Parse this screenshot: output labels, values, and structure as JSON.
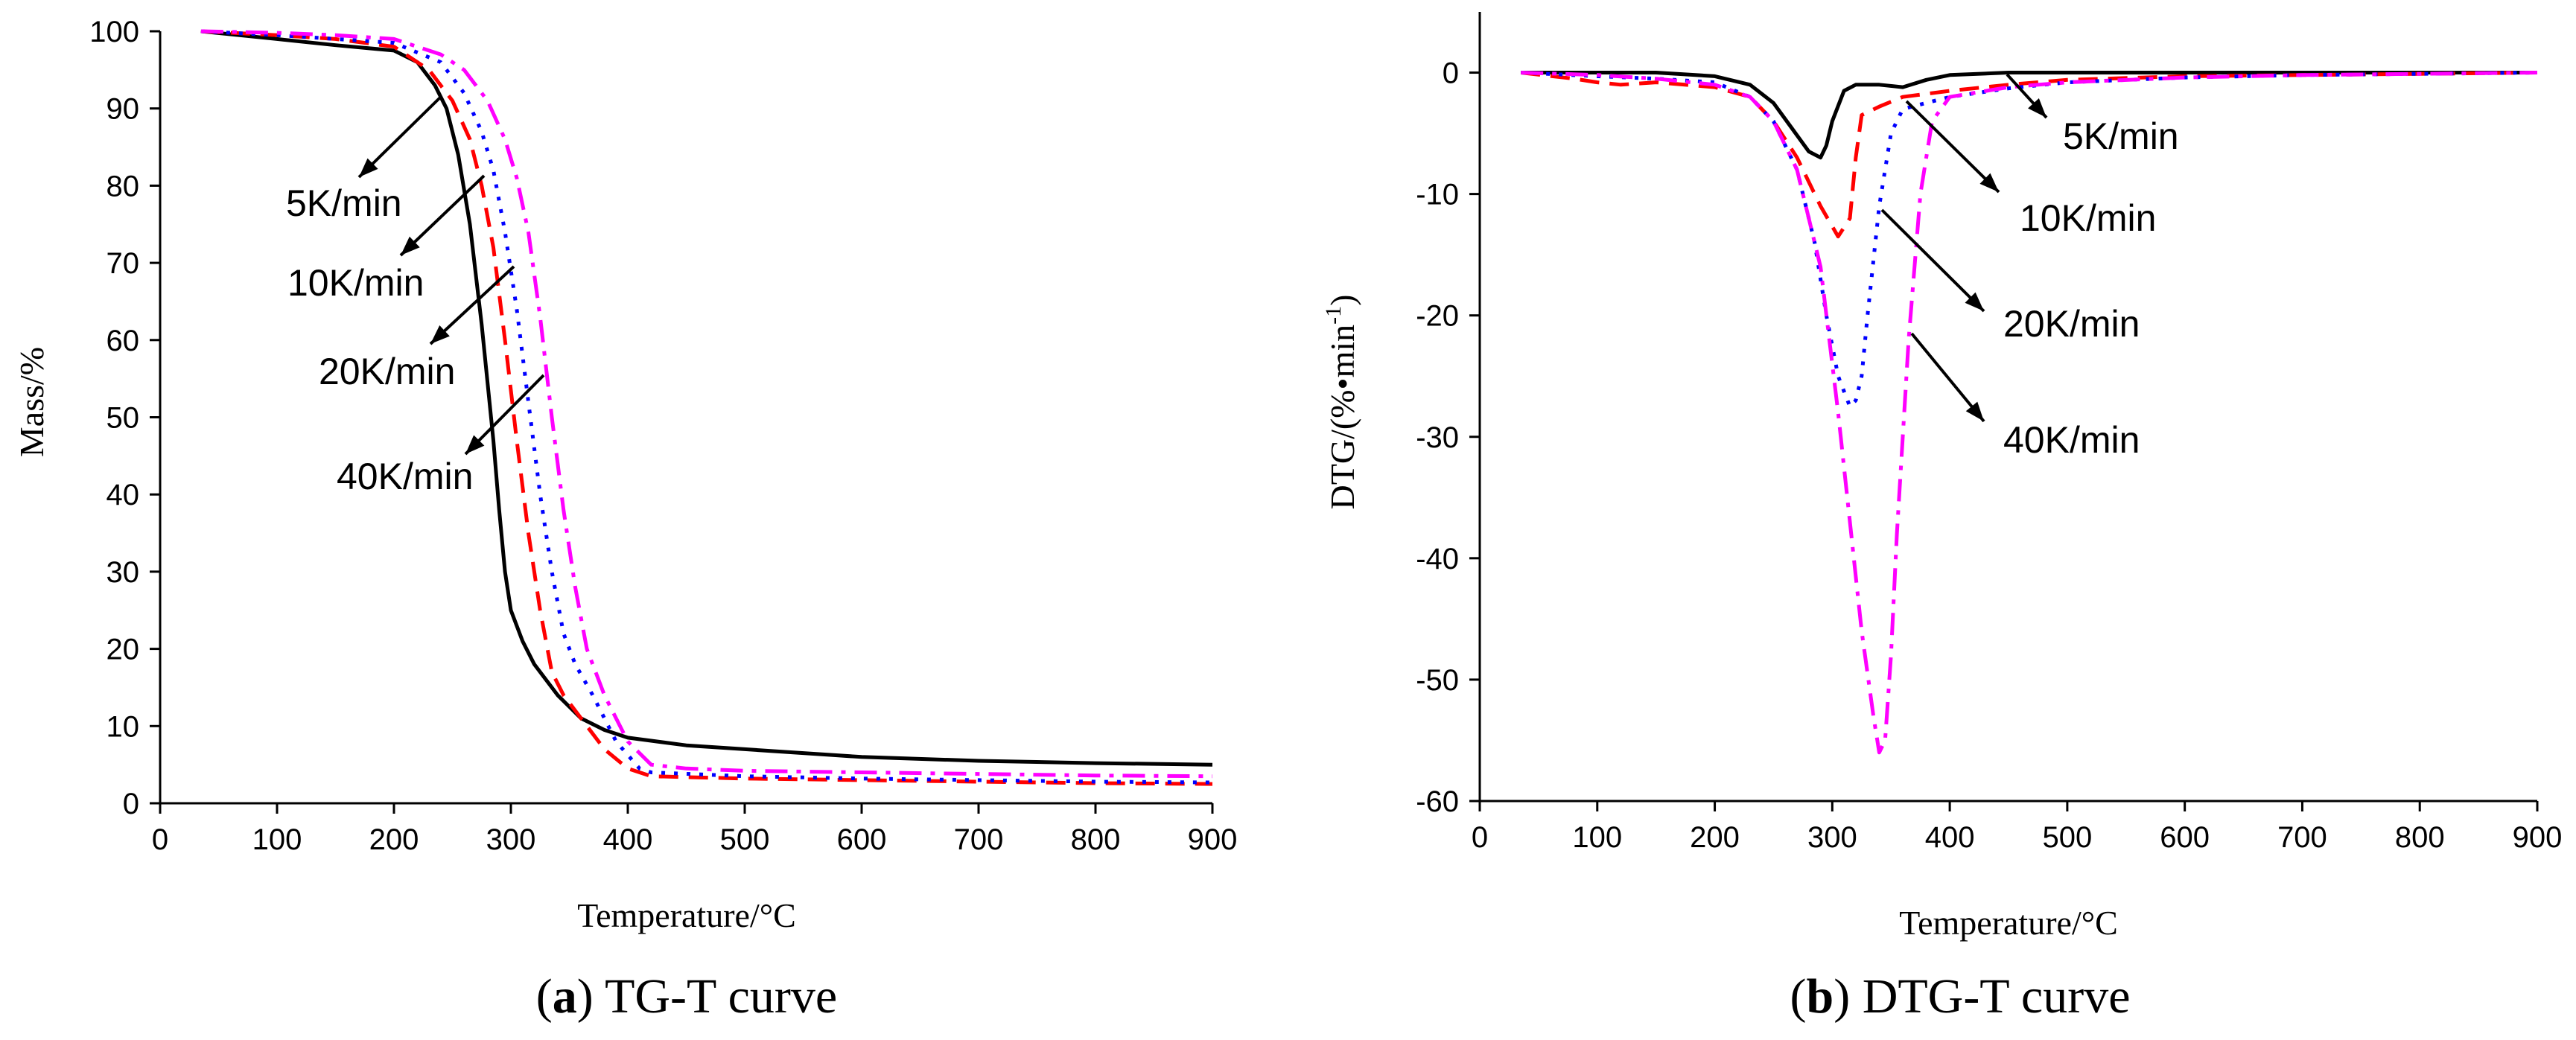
{
  "colors": {
    "5K/min": "#000000",
    "10K/min": "#ff0000",
    "20K/min": "#0000ff",
    "40K/min": "#ff00ff"
  },
  "chart_data": [
    {
      "type": "line",
      "caption_letter": "a",
      "caption_text": "TG-T curve",
      "xlabel": "Temperature/°C",
      "ylabel": "Mass/%",
      "xlim": [
        0,
        900
      ],
      "ylim": [
        0,
        100
      ],
      "xticks": [
        0,
        100,
        200,
        300,
        400,
        500,
        600,
        700,
        800,
        900
      ],
      "yticks": [
        0,
        10,
        20,
        30,
        40,
        50,
        60,
        70,
        80,
        90,
        100
      ],
      "grid": false,
      "series": [
        {
          "name": "5K/min",
          "style": "solid",
          "x": [
            35,
            100,
            150,
            200,
            220,
            235,
            245,
            255,
            265,
            275,
            285,
            290,
            295,
            300,
            310,
            320,
            340,
            360,
            380,
            400,
            450,
            500,
            600,
            700,
            800,
            900
          ],
          "y": [
            100,
            99,
            98.2,
            97.5,
            96,
            93,
            90,
            84,
            75,
            62,
            47,
            38,
            30,
            25,
            21,
            18,
            14,
            11,
            9.5,
            8.5,
            7.5,
            7,
            6,
            5.5,
            5.2,
            5
          ]
        },
        {
          "name": "10K/min",
          "style": "dashed",
          "x": [
            35,
            100,
            150,
            200,
            230,
            250,
            265,
            275,
            285,
            295,
            305,
            315,
            325,
            335,
            345,
            360,
            380,
            400,
            420,
            500,
            600,
            700,
            800,
            900
          ],
          "y": [
            100,
            99.5,
            99,
            98,
            95,
            91,
            86,
            80,
            72,
            60,
            47,
            35,
            25,
            17,
            14,
            11,
            7,
            4.5,
            3.5,
            3.2,
            3,
            2.8,
            2.6,
            2.5
          ]
        },
        {
          "name": "20K/min",
          "style": "dotted",
          "x": [
            35,
            100,
            150,
            200,
            240,
            260,
            275,
            285,
            295,
            305,
            315,
            325,
            335,
            345,
            355,
            370,
            390,
            410,
            420,
            500,
            600,
            700,
            800,
            900
          ],
          "y": [
            100,
            99.5,
            99,
            98.5,
            96,
            92,
            87,
            82,
            74,
            64,
            52,
            40,
            30,
            22,
            18,
            14,
            8,
            4.5,
            4,
            3.5,
            3.2,
            3,
            2.8,
            2.7
          ]
        },
        {
          "name": "40K/min",
          "style": "dashdot",
          "x": [
            35,
            100,
            150,
            200,
            240,
            260,
            280,
            295,
            305,
            315,
            325,
            335,
            345,
            355,
            365,
            380,
            400,
            420,
            450,
            500,
            600,
            700,
            800,
            900
          ],
          "y": [
            100,
            99.8,
            99.5,
            99,
            97,
            95,
            91,
            86,
            81,
            74,
            63,
            50,
            38,
            28,
            20,
            14,
            8,
            5,
            4.5,
            4.2,
            4,
            3.8,
            3.6,
            3.5
          ]
        }
      ],
      "labels": [
        {
          "series": "5K/min",
          "text": "5K/min"
        },
        {
          "series": "10K/min",
          "text": "10K/min"
        },
        {
          "series": "20K/min",
          "text": "20K/min"
        },
        {
          "series": "40K/min",
          "text": "40K/min"
        }
      ]
    },
    {
      "type": "line",
      "caption_letter": "b",
      "caption_text": "DTG-T curve",
      "xlabel": "Temperature/°C",
      "ylabel": "DTG/(%•min",
      "ylabel_superscript": "-1",
      "ylabel_close": ")",
      "xlim": [
        0,
        900
      ],
      "ylim": [
        -60,
        5
      ],
      "xticks": [
        0,
        100,
        200,
        300,
        400,
        500,
        600,
        700,
        800,
        900
      ],
      "yticks": [
        0,
        -10,
        -20,
        -30,
        -40,
        -50,
        -60
      ],
      "grid": false,
      "series": [
        {
          "name": "5K/min",
          "style": "solid",
          "x": [
            35,
            100,
            150,
            200,
            230,
            250,
            265,
            280,
            290,
            295,
            300,
            310,
            320,
            340,
            360,
            380,
            400,
            450,
            500,
            600,
            700,
            800,
            900
          ],
          "y": [
            0,
            0,
            0,
            -0.3,
            -1,
            -2.5,
            -4.5,
            -6.5,
            -7,
            -6,
            -4,
            -1.5,
            -1,
            -1,
            -1.2,
            -0.6,
            -0.2,
            0,
            0,
            0,
            0,
            0,
            0
          ]
        },
        {
          "name": "10K/min",
          "style": "dashed",
          "x": [
            35,
            80,
            100,
            120,
            150,
            200,
            230,
            250,
            270,
            290,
            305,
            315,
            320,
            325,
            340,
            360,
            400,
            450,
            500,
            600,
            700,
            800,
            900
          ],
          "y": [
            0,
            -0.5,
            -0.8,
            -1,
            -0.8,
            -1.2,
            -2,
            -4,
            -7,
            -11,
            -13.5,
            -12,
            -7,
            -3.5,
            -2.8,
            -2,
            -1.5,
            -1,
            -0.6,
            -0.3,
            -0.2,
            -0.1,
            0
          ]
        },
        {
          "name": "20K/min",
          "style": "dotted",
          "x": [
            35,
            100,
            150,
            200,
            230,
            250,
            270,
            285,
            295,
            305,
            315,
            320,
            325,
            330,
            340,
            350,
            360,
            380,
            400,
            450,
            500,
            600,
            700,
            800,
            900
          ],
          "y": [
            0,
            -0.3,
            -0.5,
            -0.8,
            -2,
            -4,
            -8,
            -14,
            -20,
            -25,
            -27.5,
            -27,
            -25,
            -20,
            -11,
            -5,
            -3,
            -2.5,
            -2,
            -1.3,
            -0.8,
            -0.4,
            -0.2,
            -0.1,
            0
          ]
        },
        {
          "name": "40K/min",
          "style": "dashdot",
          "x": [
            35,
            100,
            150,
            200,
            230,
            250,
            270,
            290,
            305,
            315,
            325,
            335,
            340,
            345,
            350,
            355,
            365,
            375,
            385,
            400,
            450,
            500,
            600,
            700,
            800,
            900
          ],
          "y": [
            0,
            -0.2,
            -0.5,
            -1,
            -2,
            -4,
            -8,
            -16,
            -28,
            -37,
            -46,
            -53,
            -56,
            -55,
            -48,
            -38,
            -22,
            -10,
            -4,
            -2,
            -1.2,
            -0.8,
            -0.4,
            -0.2,
            -0.1,
            0
          ]
        }
      ],
      "labels": [
        {
          "series": "5K/min",
          "text": "5K/min"
        },
        {
          "series": "10K/min",
          "text": "10K/min"
        },
        {
          "series": "20K/min",
          "text": "20K/min"
        },
        {
          "series": "40K/min",
          "text": "40K/min"
        }
      ]
    }
  ]
}
